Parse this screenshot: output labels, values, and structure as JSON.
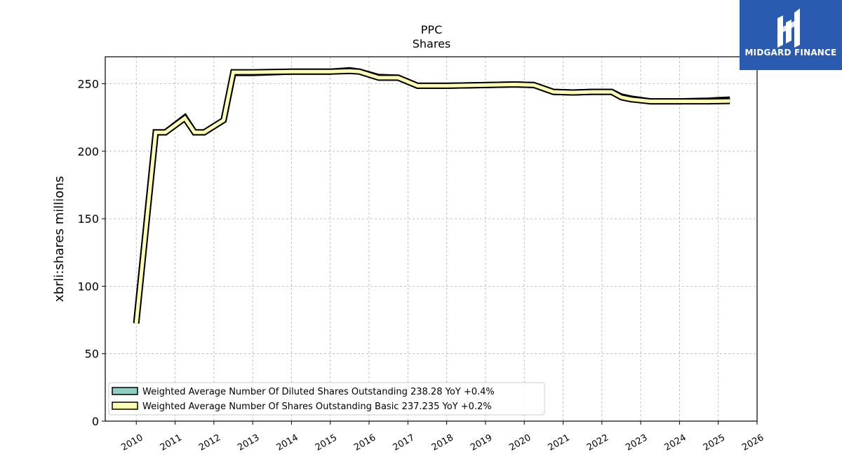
{
  "chart_data": {
    "type": "line",
    "title": "PPC",
    "subtitle": "Shares",
    "xlabel": "",
    "ylabel": "xbrli:shares millions",
    "xlim": [
      2009.2,
      2026.0
    ],
    "ylim": [
      0,
      270
    ],
    "x_ticks": [
      2010,
      2011,
      2012,
      2013,
      2014,
      2015,
      2016,
      2017,
      2018,
      2019,
      2020,
      2021,
      2022,
      2023,
      2024,
      2025,
      2026
    ],
    "x_tick_labels": [
      "2010",
      "2011",
      "2012",
      "2013",
      "2014",
      "2015",
      "2016",
      "2017",
      "2018",
      "2019",
      "2020",
      "2021",
      "2022",
      "2023",
      "2024",
      "2025",
      "2026"
    ],
    "y_ticks": [
      0,
      50,
      100,
      150,
      200,
      250
    ],
    "y_tick_labels": [
      "0",
      "50",
      "100",
      "150",
      "200",
      "250"
    ],
    "grid": true,
    "legend_position": "lower-left",
    "series": [
      {
        "name": "Weighted Average Number Of Diluted Shares Outstanding  238.28 YoY +0.4%",
        "color": "#8ecfc4",
        "x": [
          2010.0,
          2010.5,
          2010.75,
          2011.25,
          2011.5,
          2011.75,
          2012.25,
          2012.5,
          2013.0,
          2014.0,
          2015.0,
          2015.5,
          2015.75,
          2016.25,
          2016.75,
          2017.25,
          2018.0,
          2019.0,
          2019.75,
          2020.25,
          2020.75,
          2021.25,
          2021.75,
          2022.25,
          2022.5,
          2022.75,
          2023.25,
          2024.0,
          2024.75,
          2025.3
        ],
        "y": [
          73,
          214,
          214,
          225,
          214,
          214,
          223,
          258,
          258,
          259,
          259,
          260,
          259,
          255,
          254.5,
          248.5,
          248.5,
          249,
          249.5,
          249,
          244,
          243.5,
          244,
          244,
          240.5,
          239,
          237,
          237,
          237.5,
          238.28
        ]
      },
      {
        "name": "Weighted Average Number Of Shares Outstanding Basic  237.235 YoY +0.2%",
        "color": "#ffffb3",
        "x": [
          2010.0,
          2010.5,
          2010.75,
          2011.25,
          2011.5,
          2011.75,
          2012.25,
          2012.5,
          2013.0,
          2014.0,
          2015.0,
          2015.5,
          2015.75,
          2016.25,
          2016.75,
          2017.25,
          2018.0,
          2019.0,
          2019.75,
          2020.25,
          2020.75,
          2021.25,
          2021.75,
          2022.25,
          2022.5,
          2022.75,
          2023.25,
          2024.0,
          2024.75,
          2025.3
        ],
        "y": [
          72.5,
          214,
          214,
          224.5,
          214,
          214,
          223,
          258.5,
          258.5,
          259,
          259,
          259.5,
          259,
          254.5,
          254.5,
          248.5,
          248.5,
          249,
          249.5,
          249,
          244,
          243.5,
          244,
          244,
          240,
          238.5,
          237,
          237,
          237,
          237.235
        ]
      }
    ]
  },
  "logo": {
    "text": "MIDGARD FINANCE",
    "background": "#2a5bb0"
  }
}
